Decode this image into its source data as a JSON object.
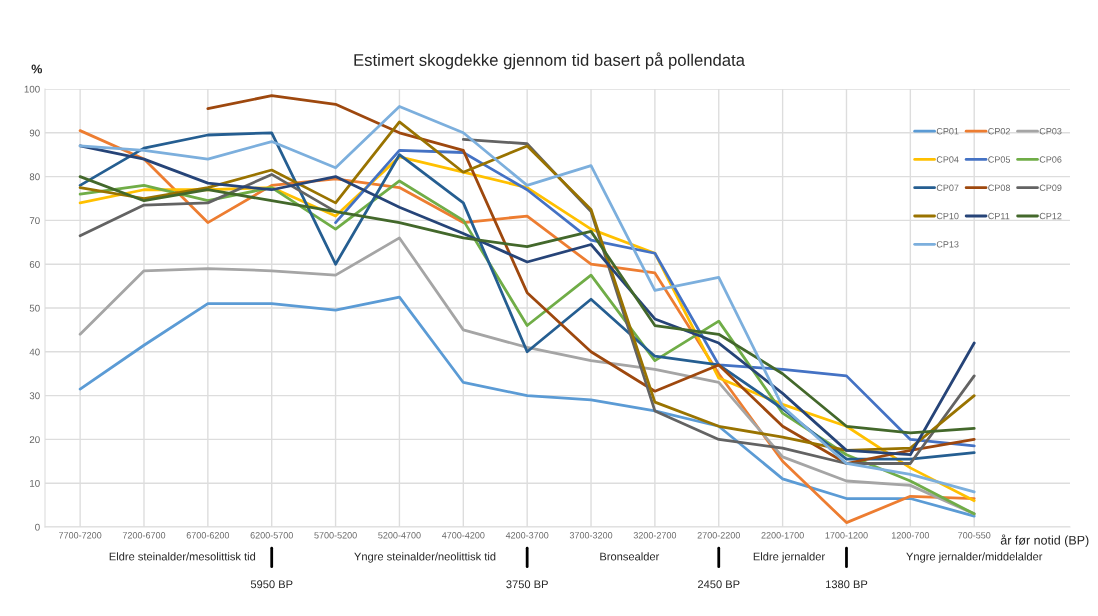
{
  "chart_data": {
    "type": "line",
    "title": "Estimert skogdekke gjennom tid basert på pollendata",
    "xlabel": "år før notid (BP)",
    "ylabel": "%",
    "categories": [
      "7700-7200",
      "7200-6700",
      "6700-6200",
      "6200-5700",
      "5700-5200",
      "5200-4700",
      "4700-4200",
      "4200-3700",
      "3700-3200",
      "3200-2700",
      "2700-2200",
      "2200-1700",
      "1700-1200",
      "1200-700",
      "700-550"
    ],
    "ylim": [
      0,
      100
    ],
    "yticks": [
      0,
      10,
      20,
      30,
      40,
      50,
      60,
      70,
      80,
      90,
      100
    ],
    "grid": true,
    "legend": "top right",
    "marker": "none",
    "line_style": "solid",
    "series": [
      {
        "name": "CP01",
        "color": "#5b9bd5",
        "values": [
          31.5,
          41.5,
          51,
          51,
          49.5,
          52.5,
          33,
          30,
          29,
          26.5,
          23,
          11,
          6.5,
          6.5,
          2.5
        ]
      },
      {
        "name": "CP02",
        "color": "#ed7d31",
        "values": [
          90.5,
          84,
          69.5,
          78,
          79.5,
          77.5,
          69.5,
          71,
          60,
          58,
          35,
          15,
          1,
          7,
          6.5
        ]
      },
      {
        "name": "CP03",
        "color": "#a5a5a5",
        "values": [
          44,
          58.5,
          59,
          58.5,
          57.5,
          66,
          45,
          41,
          38,
          36,
          33,
          16,
          10.5,
          9.5,
          3
        ]
      },
      {
        "name": "CP04",
        "color": "#ffc000",
        "values": [
          74,
          77,
          77,
          77.5,
          71,
          84.5,
          81,
          77.5,
          68,
          62.5,
          34,
          28,
          23,
          13.5,
          6
        ]
      },
      {
        "name": "CP05",
        "color": "#4472c4",
        "values": [
          null,
          null,
          null,
          null,
          69.5,
          86,
          85.5,
          77,
          65.5,
          62.5,
          37,
          36,
          34.5,
          20,
          18.5
        ]
      },
      {
        "name": "CP06",
        "color": "#70ad47",
        "values": [
          76,
          78,
          74.5,
          77.5,
          68,
          79,
          70,
          46,
          57.5,
          38,
          47,
          26,
          16.5,
          10.5,
          3
        ]
      },
      {
        "name": "CP07",
        "color": "#255e91",
        "values": [
          78,
          86.5,
          89.5,
          90,
          60,
          85,
          74,
          40,
          52,
          39,
          37,
          27,
          15.5,
          15.5,
          17
        ]
      },
      {
        "name": "CP08",
        "color": "#9e480e",
        "values": [
          null,
          null,
          95.5,
          98.5,
          96.5,
          90,
          86,
          53.5,
          40,
          31,
          37,
          23,
          14.5,
          17.5,
          20
        ]
      },
      {
        "name": "CP09",
        "color": "#636363",
        "values": [
          66.5,
          73.5,
          74,
          80.5,
          72,
          null,
          88.5,
          87.5,
          72,
          26.5,
          20,
          18,
          14.5,
          14.5,
          34.5
        ]
      },
      {
        "name": "CP10",
        "color": "#997300",
        "values": [
          77.5,
          75,
          77.5,
          81.5,
          74,
          92.5,
          81,
          87,
          72.5,
          28.5,
          23,
          20.5,
          17.5,
          18,
          30
        ]
      },
      {
        "name": "CP11",
        "color": "#264478",
        "values": [
          87,
          84,
          78.5,
          77,
          80,
          73,
          67,
          60.5,
          64.5,
          47.5,
          42,
          30.5,
          17.5,
          16.5,
          42
        ]
      },
      {
        "name": "CP12",
        "color": "#43682b",
        "values": [
          80,
          74.5,
          77,
          74.5,
          72,
          69.5,
          66,
          64,
          67.5,
          46,
          44,
          35,
          23,
          21.5,
          22.5
        ]
      },
      {
        "name": "CP13",
        "color": "#7cafdd",
        "values": [
          87,
          86,
          84,
          88,
          82,
          96,
          90,
          78,
          82.5,
          54,
          57,
          27.5,
          14.5,
          12,
          8
        ]
      }
    ],
    "annotations": [
      "Eldre steinalder/mesolittisk tid",
      "Yngre steinalder/neolittisk tid",
      "Bronsealder",
      "Eldre jernalder",
      "Yngre jernalder/middelalder",
      "5950 BP",
      "3750 BP",
      "2450 BP",
      "1380 BP"
    ]
  }
}
